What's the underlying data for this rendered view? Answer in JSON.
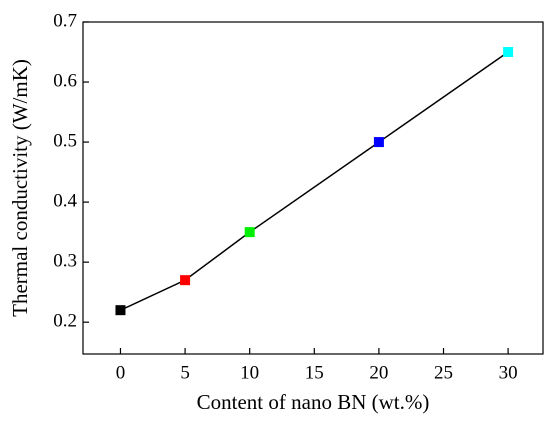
{
  "chart_data": {
    "type": "line",
    "x_label": "Content of nano BN (wt.%)",
    "y_label": "Thermal conductivity (W/mK)",
    "x": [
      0,
      5,
      10,
      20,
      30
    ],
    "series": [
      {
        "color": "#000000",
        "marker_colors": [
          "#000000",
          "#ff0000",
          "#00ee00",
          "#0000ff",
          "#00ffff"
        ],
        "values": [
          0.22,
          0.27,
          0.35,
          0.5,
          0.65
        ]
      }
    ],
    "xlim": [
      -2.9,
      32.7
    ],
    "xticks": [
      0,
      5,
      10,
      15,
      20,
      25,
      30
    ],
    "ylim": [
      0.147,
      0.7
    ],
    "yticks": [
      0.2,
      0.3,
      0.4,
      0.5,
      0.6,
      0.7
    ]
  }
}
